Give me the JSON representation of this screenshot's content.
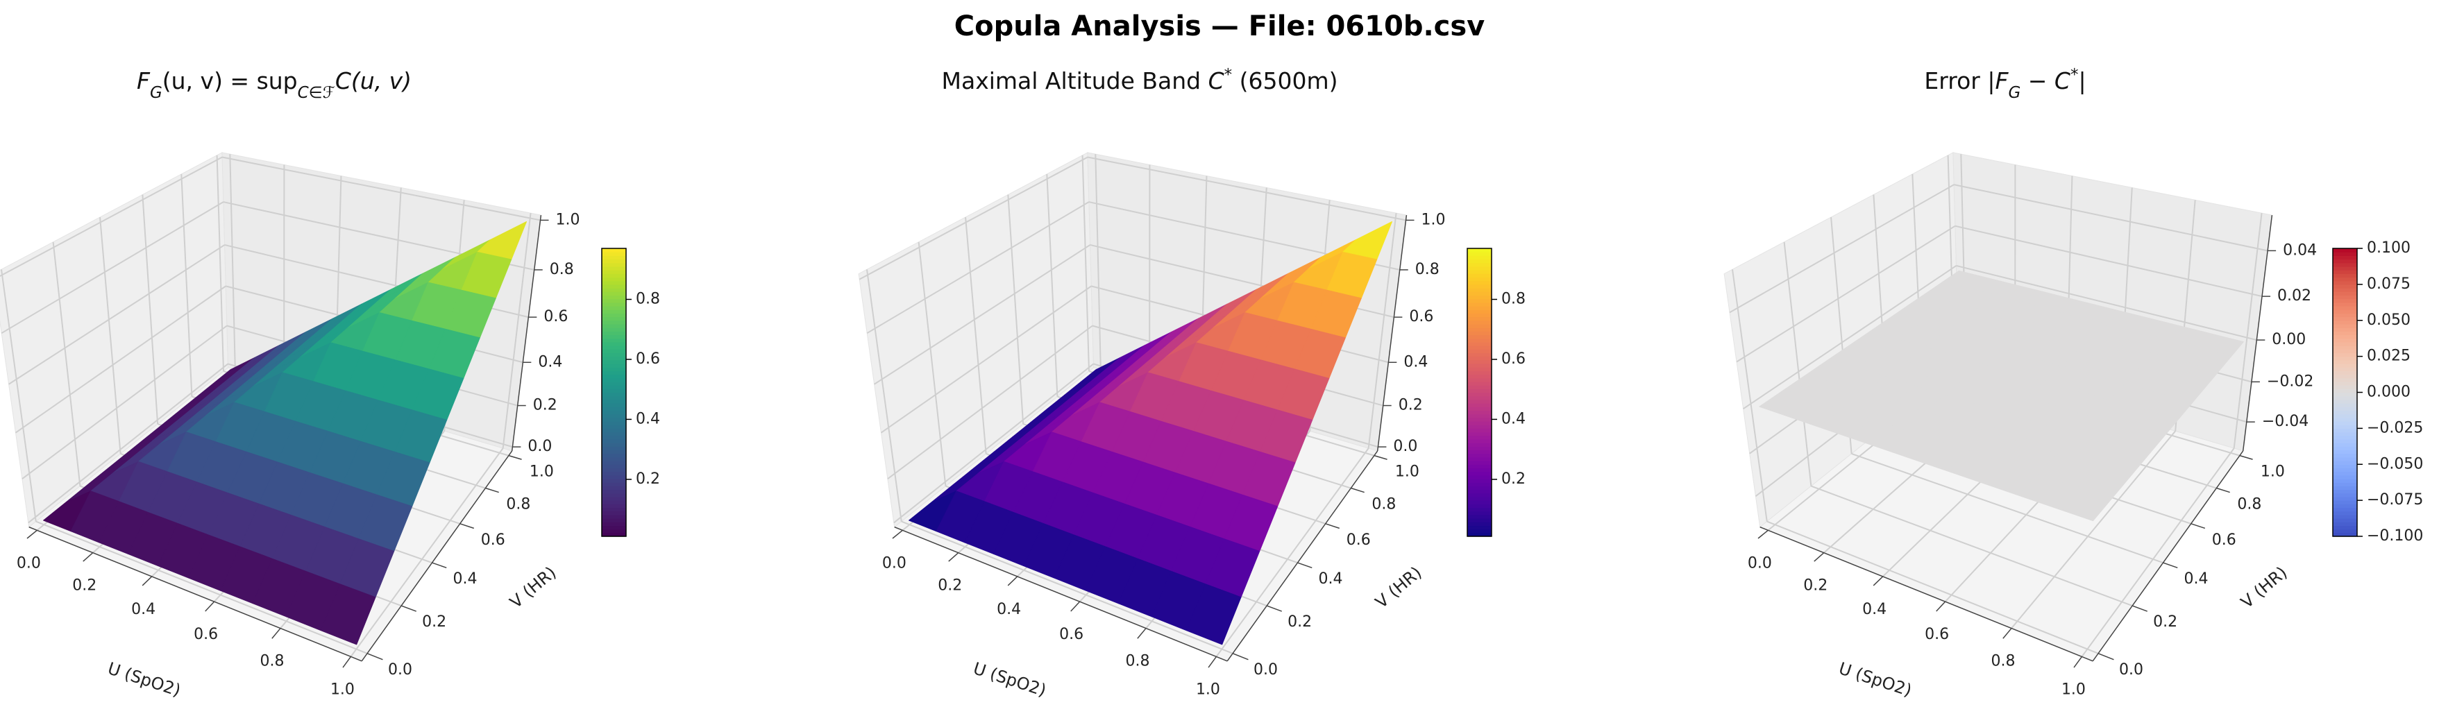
{
  "title": "Copula Analysis — File: 0610b.csv",
  "chart_data": [
    {
      "type": "surface",
      "colormap": "viridis",
      "title": [
        {
          "text": "F",
          "italic": true
        },
        {
          "text": "G",
          "sub": true,
          "italic": true
        },
        {
          "text": "(u, v) = sup"
        },
        {
          "text": "C∈ℱ",
          "sub": true,
          "italic": true
        },
        {
          "text": "C(u, v)",
          "italic": true
        }
      ],
      "xlabel": "U (SpO2)",
      "ylabel": "V (HR)",
      "x": [
        0,
        0.1,
        0.2,
        0.3,
        0.4,
        0.5,
        0.6,
        0.7,
        0.8,
        0.9,
        1
      ],
      "y": [
        0,
        0.1,
        0.2,
        0.3,
        0.4,
        0.5,
        0.6,
        0.7,
        0.8,
        0.9,
        1
      ],
      "z": [
        [
          0,
          0,
          0,
          0,
          0,
          0,
          0,
          0,
          0,
          0,
          0
        ],
        [
          0,
          0.1,
          0.1,
          0.1,
          0.1,
          0.1,
          0.1,
          0.1,
          0.1,
          0.1,
          0.1
        ],
        [
          0,
          0.1,
          0.2,
          0.2,
          0.2,
          0.2,
          0.2,
          0.2,
          0.2,
          0.2,
          0.2
        ],
        [
          0,
          0.1,
          0.2,
          0.3,
          0.3,
          0.3,
          0.3,
          0.3,
          0.3,
          0.3,
          0.3
        ],
        [
          0,
          0.1,
          0.2,
          0.3,
          0.4,
          0.4,
          0.4,
          0.4,
          0.4,
          0.4,
          0.4
        ],
        [
          0,
          0.1,
          0.2,
          0.3,
          0.4,
          0.5,
          0.5,
          0.5,
          0.5,
          0.5,
          0.5
        ],
        [
          0,
          0.1,
          0.2,
          0.3,
          0.4,
          0.5,
          0.6,
          0.6,
          0.6,
          0.6,
          0.6
        ],
        [
          0,
          0.1,
          0.2,
          0.3,
          0.4,
          0.5,
          0.6,
          0.7,
          0.7,
          0.7,
          0.7
        ],
        [
          0,
          0.1,
          0.2,
          0.3,
          0.4,
          0.5,
          0.6,
          0.7,
          0.8,
          0.8,
          0.8
        ],
        [
          0,
          0.1,
          0.2,
          0.3,
          0.4,
          0.5,
          0.6,
          0.7,
          0.8,
          0.9,
          0.9
        ],
        [
          0,
          0.1,
          0.2,
          0.3,
          0.4,
          0.5,
          0.6,
          0.7,
          0.8,
          0.9,
          1
        ]
      ],
      "xlim": [
        -0.03,
        1.03
      ],
      "ylim": [
        -0.03,
        1.03
      ],
      "zlim": [
        -0.02,
        1.02
      ],
      "xticks": [
        {
          "value": 0,
          "label": "0.0"
        },
        0.2,
        0.4,
        0.6,
        0.8,
        {
          "value": 1,
          "label": "1.0"
        }
      ],
      "yticks": [
        {
          "value": 0,
          "label": "0.0"
        },
        0.2,
        0.4,
        0.6,
        0.8,
        {
          "value": 1,
          "label": "1.0"
        }
      ],
      "zticks": [
        {
          "value": 0,
          "label": "0.0"
        },
        0.2,
        0.4,
        0.6,
        0.8,
        {
          "value": 1,
          "label": "1.0"
        }
      ],
      "clim": [
        0.01,
        0.97
      ],
      "cticks": [
        0.2,
        0.4,
        0.6,
        0.8
      ],
      "grid": true
    },
    {
      "type": "surface",
      "colormap": "plasma",
      "title": [
        {
          "text": "Maximal Altitude Band "
        },
        {
          "text": "C",
          "italic": true
        },
        {
          "text": "*",
          "sup": true
        },
        {
          "text": " (6500m)"
        }
      ],
      "xlabel": "U (SpO2)",
      "ylabel": "V (HR)",
      "x": [
        0,
        0.1,
        0.2,
        0.3,
        0.4,
        0.5,
        0.6,
        0.7,
        0.8,
        0.9,
        1
      ],
      "y": [
        0,
        0.1,
        0.2,
        0.3,
        0.4,
        0.5,
        0.6,
        0.7,
        0.8,
        0.9,
        1
      ],
      "z": [
        [
          0,
          0,
          0,
          0,
          0,
          0,
          0,
          0,
          0,
          0,
          0
        ],
        [
          0,
          0.1,
          0.1,
          0.1,
          0.1,
          0.1,
          0.1,
          0.1,
          0.1,
          0.1,
          0.1
        ],
        [
          0,
          0.1,
          0.2,
          0.2,
          0.2,
          0.2,
          0.2,
          0.2,
          0.2,
          0.2,
          0.2
        ],
        [
          0,
          0.1,
          0.2,
          0.3,
          0.3,
          0.3,
          0.3,
          0.3,
          0.3,
          0.3,
          0.3
        ],
        [
          0,
          0.1,
          0.2,
          0.3,
          0.4,
          0.4,
          0.4,
          0.4,
          0.4,
          0.4,
          0.4
        ],
        [
          0,
          0.1,
          0.2,
          0.3,
          0.4,
          0.5,
          0.5,
          0.5,
          0.5,
          0.5,
          0.5
        ],
        [
          0,
          0.1,
          0.2,
          0.3,
          0.4,
          0.5,
          0.6,
          0.6,
          0.6,
          0.6,
          0.6
        ],
        [
          0,
          0.1,
          0.2,
          0.3,
          0.4,
          0.5,
          0.6,
          0.7,
          0.7,
          0.7,
          0.7
        ],
        [
          0,
          0.1,
          0.2,
          0.3,
          0.4,
          0.5,
          0.6,
          0.7,
          0.8,
          0.8,
          0.8
        ],
        [
          0,
          0.1,
          0.2,
          0.3,
          0.4,
          0.5,
          0.6,
          0.7,
          0.8,
          0.9,
          0.9
        ],
        [
          0,
          0.1,
          0.2,
          0.3,
          0.4,
          0.5,
          0.6,
          0.7,
          0.8,
          0.9,
          1
        ]
      ],
      "xlim": [
        -0.03,
        1.03
      ],
      "ylim": [
        -0.03,
        1.03
      ],
      "zlim": [
        -0.02,
        1.02
      ],
      "xticks": [
        {
          "value": 0,
          "label": "0.0"
        },
        0.2,
        0.4,
        0.6,
        0.8,
        {
          "value": 1,
          "label": "1.0"
        }
      ],
      "yticks": [
        {
          "value": 0,
          "label": "0.0"
        },
        0.2,
        0.4,
        0.6,
        0.8,
        {
          "value": 1,
          "label": "1.0"
        }
      ],
      "zticks": [
        {
          "value": 0,
          "label": "0.0"
        },
        0.2,
        0.4,
        0.6,
        0.8,
        {
          "value": 1,
          "label": "1.0"
        }
      ],
      "clim": [
        0.01,
        0.97
      ],
      "cticks": [
        0.2,
        0.4,
        0.6,
        0.8
      ],
      "grid": true
    },
    {
      "type": "surface",
      "colormap": "coolwarm",
      "title": [
        {
          "text": "Error |"
        },
        {
          "text": "F",
          "italic": true
        },
        {
          "text": "G",
          "sub": true,
          "italic": true
        },
        {
          "text": " − "
        },
        {
          "text": "C",
          "italic": true
        },
        {
          "text": "*",
          "sup": true
        },
        {
          "text": "|"
        }
      ],
      "xlabel": "U (SpO2)",
      "ylabel": "V (HR)",
      "x": [
        0,
        0.1,
        0.2,
        0.3,
        0.4,
        0.5,
        0.6,
        0.7,
        0.8,
        0.9,
        1
      ],
      "y": [
        0,
        0.1,
        0.2,
        0.3,
        0.4,
        0.5,
        0.6,
        0.7,
        0.8,
        0.9,
        1
      ],
      "z": [
        [
          0,
          0,
          0,
          0,
          0,
          0,
          0,
          0,
          0,
          0,
          0
        ],
        [
          0,
          0,
          0,
          0,
          0,
          0,
          0,
          0,
          0,
          0,
          0
        ],
        [
          0,
          0,
          0,
          0,
          0,
          0,
          0,
          0,
          0,
          0,
          0
        ],
        [
          0,
          0,
          0,
          0,
          0,
          0,
          0,
          0,
          0,
          0,
          0
        ],
        [
          0,
          0,
          0,
          0,
          0,
          0,
          0,
          0,
          0,
          0,
          0
        ],
        [
          0,
          0,
          0,
          0,
          0,
          0,
          0,
          0,
          0,
          0,
          0
        ],
        [
          0,
          0,
          0,
          0,
          0,
          0,
          0,
          0,
          0,
          0,
          0
        ],
        [
          0,
          0,
          0,
          0,
          0,
          0,
          0,
          0,
          0,
          0,
          0
        ],
        [
          0,
          0,
          0,
          0,
          0,
          0,
          0,
          0,
          0,
          0,
          0
        ],
        [
          0,
          0,
          0,
          0,
          0,
          0,
          0,
          0,
          0,
          0,
          0
        ],
        [
          0,
          0,
          0,
          0,
          0,
          0,
          0,
          0,
          0,
          0,
          0
        ]
      ],
      "xlim": [
        -0.03,
        1.03
      ],
      "ylim": [
        -0.03,
        1.03
      ],
      "zlim": [
        -0.055,
        0.055
      ],
      "xticks": [
        {
          "value": 0,
          "label": "0.0"
        },
        0.2,
        0.4,
        0.6,
        0.8,
        {
          "value": 1,
          "label": "1.0"
        }
      ],
      "yticks": [
        {
          "value": 0,
          "label": "0.0"
        },
        0.2,
        0.4,
        0.6,
        0.8,
        {
          "value": 1,
          "label": "1.0"
        }
      ],
      "zticks": [
        {
          "value": -0.04,
          "label": "−0.04"
        },
        {
          "value": -0.02,
          "label": "−0.02"
        },
        {
          "value": 0,
          "label": "0.00"
        },
        0.02,
        0.04
      ],
      "clim": [
        -0.1,
        0.1
      ],
      "cticks": [
        {
          "value": -0.1,
          "label": "−0.100"
        },
        {
          "value": -0.075,
          "label": "−0.075"
        },
        {
          "value": -0.05,
          "label": "−0.050"
        },
        {
          "value": -0.025,
          "label": "−0.025"
        },
        {
          "value": 0,
          "label": "0.000"
        },
        0.025,
        {
          "value": 0.05,
          "label": "0.050"
        },
        0.075,
        {
          "value": 0.1,
          "label": "0.100"
        }
      ],
      "grid": true
    }
  ]
}
